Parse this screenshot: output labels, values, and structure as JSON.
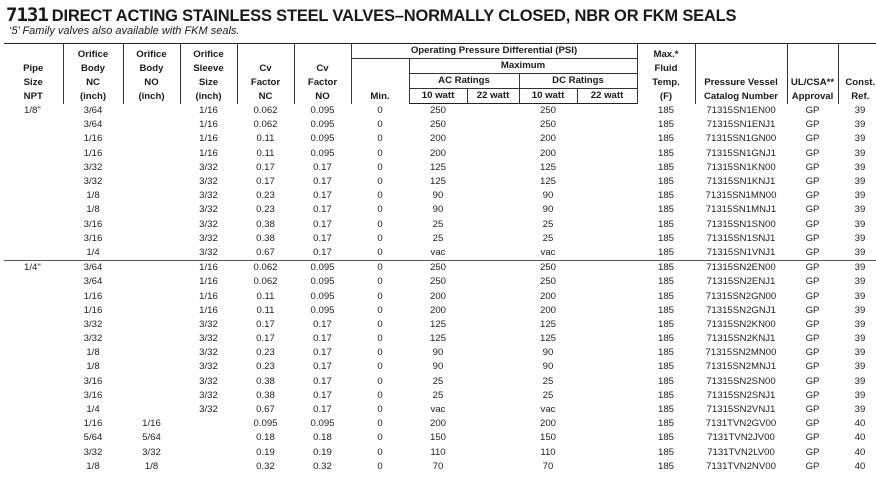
{
  "title": {
    "number": "7131",
    "text": "DIRECT ACTING STAINLESS STEEL VALVES–NORMALLY CLOSED, NBR OR FKM SEALS"
  },
  "subtitle": "‘5’ Family valves also available with FKM seals.",
  "headers": {
    "pipe": [
      "Pipe",
      "Size",
      "NPT"
    ],
    "orifice_nc": [
      "Orifice",
      "Body",
      "NC",
      "(inch)"
    ],
    "orifice_no": [
      "Orifice",
      "Body",
      "NO",
      "(inch)"
    ],
    "orifice_sleeve": [
      "Orifice",
      "Sleeve",
      "Size",
      "(inch)"
    ],
    "cv_nc": [
      "Cv",
      "Factor",
      "NC"
    ],
    "cv_no": [
      "Cv",
      "Factor",
      "NO"
    ],
    "opd": "Operating Pressure Differential (PSI)",
    "maximum": "Maximum",
    "min": "Min.",
    "ac": "AC Ratings",
    "dc": "DC Ratings",
    "w10": "10 watt",
    "w22": "22 watt",
    "temp": [
      "Max.*",
      "Fluid",
      "Temp.",
      "(F)"
    ],
    "catalog": [
      "Pressure Vessel",
      "Catalog Number"
    ],
    "approval": [
      "UL/CSA**",
      "Approval"
    ],
    "const": [
      "Const.",
      "Ref."
    ]
  },
  "groups": [
    {
      "pipe": "1/8\"",
      "rows": [
        [
          "3/64",
          "",
          "1/16",
          "0.062",
          "0.095",
          "0",
          "250",
          "",
          "250",
          "",
          "185",
          "71315SN1EN00",
          "GP",
          "39"
        ],
        [
          "3/64",
          "",
          "1/16",
          "0.062",
          "0.095",
          "0",
          "250",
          "",
          "250",
          "",
          "185",
          "71315SN1ENJ1",
          "GP",
          "39"
        ],
        [
          "1/16",
          "",
          "1/16",
          "0.11",
          "0.095",
          "0",
          "200",
          "",
          "200",
          "",
          "185",
          "71315SN1GN00",
          "GP",
          "39"
        ],
        [
          "1/16",
          "",
          "1/16",
          "0.11",
          "0.095",
          "0",
          "200",
          "",
          "200",
          "",
          "185",
          "71315SN1GNJ1",
          "GP",
          "39"
        ],
        [
          "3/32",
          "",
          "3/32",
          "0.17",
          "0.17",
          "0",
          "125",
          "",
          "125",
          "",
          "185",
          "71315SN1KN00",
          "GP",
          "39"
        ],
        [
          "3/32",
          "",
          "3/32",
          "0.17",
          "0.17",
          "0",
          "125",
          "",
          "125",
          "",
          "185",
          "71315SN1KNJ1",
          "GP",
          "39"
        ],
        [
          "1/8",
          "",
          "3/32",
          "0.23",
          "0.17",
          "0",
          "90",
          "",
          "90",
          "",
          "185",
          "71315SN1MN00",
          "GP",
          "39"
        ],
        [
          "1/8",
          "",
          "3/32",
          "0.23",
          "0.17",
          "0",
          "90",
          "",
          "90",
          "",
          "185",
          "71315SN1MNJ1",
          "GP",
          "39"
        ],
        [
          "3/16",
          "",
          "3/32",
          "0.38",
          "0.17",
          "0",
          "25",
          "",
          "25",
          "",
          "185",
          "71315SN1SN00",
          "GP",
          "39"
        ],
        [
          "3/16",
          "",
          "3/32",
          "0.38",
          "0.17",
          "0",
          "25",
          "",
          "25",
          "",
          "185",
          "71315SN1SNJ1",
          "GP",
          "39"
        ],
        [
          "1/4",
          "",
          "3/32",
          "0.67",
          "0.17",
          "0",
          "vac",
          "",
          "vac",
          "",
          "185",
          "71315SN1VNJ1",
          "GP",
          "39"
        ]
      ]
    },
    {
      "pipe": "1/4\"",
      "rows": [
        [
          "3/64",
          "",
          "1/16",
          "0.062",
          "0.095",
          "0",
          "250",
          "",
          "250",
          "",
          "185",
          "71315SN2EN00",
          "GP",
          "39"
        ],
        [
          "3/64",
          "",
          "1/16",
          "0.062",
          "0.095",
          "0",
          "250",
          "",
          "250",
          "",
          "185",
          "71315SN2ENJ1",
          "GP",
          "39"
        ],
        [
          "1/16",
          "",
          "1/16",
          "0.11",
          "0.095",
          "0",
          "200",
          "",
          "200",
          "",
          "185",
          "71315SN2GN00",
          "GP",
          "39"
        ],
        [
          "1/16",
          "",
          "1/16",
          "0.11",
          "0.095",
          "0",
          "200",
          "",
          "200",
          "",
          "185",
          "71315SN2GNJ1",
          "GP",
          "39"
        ],
        [
          "3/32",
          "",
          "3/32",
          "0.17",
          "0.17",
          "0",
          "125",
          "",
          "125",
          "",
          "185",
          "71315SN2KN00",
          "GP",
          "39"
        ],
        [
          "3/32",
          "",
          "3/32",
          "0.17",
          "0.17",
          "0",
          "125",
          "",
          "125",
          "",
          "185",
          "71315SN2KNJ1",
          "GP",
          "39"
        ],
        [
          "1/8",
          "",
          "3/32",
          "0.23",
          "0.17",
          "0",
          "90",
          "",
          "90",
          "",
          "185",
          "71315SN2MN00",
          "GP",
          "39"
        ],
        [
          "1/8",
          "",
          "3/32",
          "0.23",
          "0.17",
          "0",
          "90",
          "",
          "90",
          "",
          "185",
          "71315SN2MNJ1",
          "GP",
          "39"
        ],
        [
          "3/16",
          "",
          "3/32",
          "0.38",
          "0.17",
          "0",
          "25",
          "",
          "25",
          "",
          "185",
          "71315SN2SN00",
          "GP",
          "39"
        ],
        [
          "3/16",
          "",
          "3/32",
          "0.38",
          "0.17",
          "0",
          "25",
          "",
          "25",
          "",
          "185",
          "71315SN2SNJ1",
          "GP",
          "39"
        ],
        [
          "1/4",
          "",
          "3/32",
          "0.67",
          "0.17",
          "0",
          "vac",
          "",
          "vac",
          "",
          "185",
          "71315SN2VNJ1",
          "GP",
          "39"
        ],
        [
          "1/16",
          "1/16",
          "",
          "0.095",
          "0.095",
          "0",
          "200",
          "",
          "200",
          "",
          "185",
          "7131TVN2GV00",
          "GP",
          "40"
        ],
        [
          "5/64",
          "5/64",
          "",
          "0.18",
          "0.18",
          "0",
          "150",
          "",
          "150",
          "",
          "185",
          "7131TVN2JV00",
          "GP",
          "40"
        ],
        [
          "3/32",
          "3/32",
          "",
          "0.19",
          "0.19",
          "0",
          "110",
          "",
          "110",
          "",
          "185",
          "7131TVN2LV00",
          "GP",
          "40"
        ],
        [
          "1/8",
          "1/8",
          "",
          "0.32",
          "0.32",
          "0",
          "70",
          "",
          "70",
          "",
          "185",
          "7131TVN2NV00",
          "GP",
          "40"
        ]
      ]
    }
  ]
}
